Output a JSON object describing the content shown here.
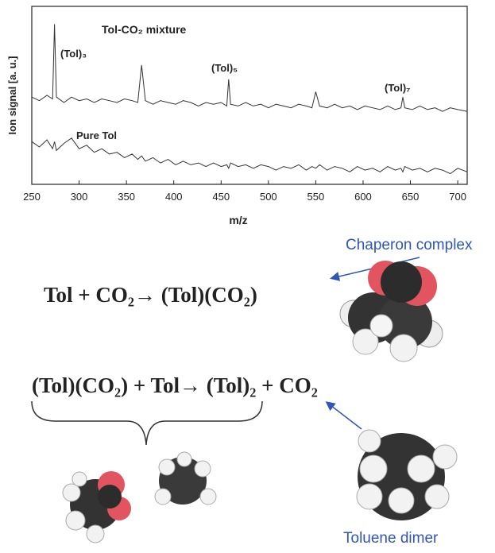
{
  "chart_data": {
    "type": "line",
    "y_label": "Ion signal [a. u.]",
    "x_label": "m/z",
    "xlim": [
      250,
      710
    ],
    "xticks": [
      250,
      300,
      350,
      400,
      450,
      500,
      550,
      600,
      650,
      700
    ],
    "ylim": [
      0,
      100
    ],
    "x": [
      250,
      258,
      266,
      272,
      274,
      276,
      284,
      292,
      300,
      308,
      316,
      324,
      332,
      340,
      348,
      356,
      362,
      366,
      370,
      378,
      386,
      394,
      402,
      410,
      418,
      426,
      434,
      442,
      450,
      456,
      458,
      460,
      468,
      476,
      484,
      492,
      500,
      508,
      516,
      524,
      532,
      540,
      546,
      550,
      554,
      562,
      570,
      578,
      586,
      594,
      602,
      610,
      618,
      626,
      634,
      640,
      642,
      644,
      652,
      660,
      668,
      676,
      684,
      692,
      700,
      710
    ],
    "series": [
      {
        "color": "#333333",
        "values": [
          49,
          47,
          50,
          48,
          90,
          49,
          46,
          49,
          47,
          48,
          46,
          48,
          47,
          46,
          48,
          47,
          46,
          67,
          47,
          45,
          47,
          46,
          45,
          47,
          46,
          44,
          46,
          45,
          46,
          44,
          59,
          45,
          44,
          46,
          44,
          45,
          43,
          45,
          44,
          43,
          45,
          44,
          43,
          52,
          44,
          43,
          45,
          43,
          44,
          42,
          44,
          43,
          42,
          44,
          42,
          43,
          49,
          43,
          42,
          44,
          42,
          43,
          41,
          43,
          42,
          41
        ]
      },
      {
        "color": "#333333",
        "values": [
          24,
          21,
          25,
          20,
          24,
          19,
          23,
          26,
          20,
          22,
          18,
          20,
          17,
          18,
          15,
          17,
          14,
          16,
          13,
          15,
          12,
          14,
          11,
          13,
          11,
          12,
          10,
          12,
          10,
          11,
          9,
          12,
          10,
          11,
          9,
          11,
          10,
          8,
          10,
          9,
          11,
          8,
          10,
          9,
          11,
          8,
          10,
          9,
          7,
          10,
          8,
          9,
          7,
          10,
          8,
          9,
          7,
          10,
          8,
          9,
          7,
          9,
          8,
          6,
          9,
          7
        ]
      }
    ],
    "annotations": [
      "Tol-CO₂ mixture",
      "(Tol)₃",
      "(Tol)₅",
      "(Tol)₇",
      "Pure Tol"
    ]
  },
  "scheme": {
    "equation_1": "Tol + CO₂→ (Tol)(CO₂)",
    "equation_2": "(Tol)(CO₂) +  Tol→ (Tol)₂ + CO₂",
    "label_complex": "Chaperon complex",
    "label_dimer": "Toluene dimer"
  }
}
